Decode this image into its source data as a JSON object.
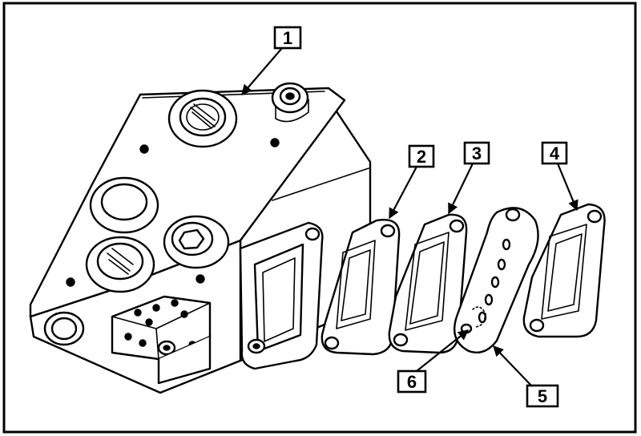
{
  "callouts": [
    {
      "id": "1",
      "text": "1"
    },
    {
      "id": "2",
      "text": "2"
    },
    {
      "id": "3",
      "text": "3"
    },
    {
      "id": "4",
      "text": "4"
    },
    {
      "id": "5",
      "text": "5"
    },
    {
      "id": "6",
      "text": "6"
    }
  ],
  "colors": {
    "line": "#000000",
    "background": "#ffffff"
  }
}
